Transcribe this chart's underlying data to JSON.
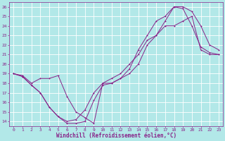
{
  "title": "",
  "xlabel": "Windchill (Refroidissement éolien,°C)",
  "ylabel": "",
  "bg_color": "#b2e8e8",
  "grid_color": "#ffffff",
  "line_color": "#882288",
  "xlim": [
    -0.5,
    23.5
  ],
  "ylim": [
    13.5,
    26.5
  ],
  "xticks": [
    0,
    1,
    2,
    3,
    4,
    5,
    6,
    7,
    8,
    9,
    10,
    11,
    12,
    13,
    14,
    15,
    16,
    17,
    18,
    19,
    20,
    21,
    22,
    23
  ],
  "yticks": [
    14,
    15,
    16,
    17,
    18,
    19,
    20,
    21,
    22,
    23,
    24,
    25,
    26
  ],
  "line1_x": [
    0,
    1,
    2,
    3,
    4,
    5,
    6,
    7,
    8,
    9,
    10,
    11,
    12,
    13,
    14,
    15,
    16,
    17,
    18,
    19,
    20,
    21,
    22,
    23
  ],
  "line1_y": [
    19,
    18.8,
    18.0,
    18.5,
    18.5,
    18.8,
    16.6,
    15.0,
    14.4,
    13.8,
    18.0,
    18.0,
    18.5,
    19.0,
    20.0,
    22.0,
    23.0,
    24.5,
    26.0,
    26.0,
    25.5,
    24.0,
    22.0,
    21.5
  ],
  "line2_x": [
    0,
    1,
    2,
    3,
    4,
    5,
    6,
    7,
    8,
    9,
    10,
    11,
    12,
    13,
    14,
    15,
    16,
    17,
    18,
    19,
    20,
    21,
    22,
    23
  ],
  "line2_y": [
    19,
    18.7,
    17.8,
    17.0,
    15.5,
    14.5,
    13.8,
    13.8,
    14.0,
    16.2,
    17.8,
    18.0,
    18.5,
    19.5,
    21.5,
    23.0,
    24.5,
    25.0,
    26.0,
    25.8,
    24.0,
    21.8,
    21.2,
    21.0
  ],
  "line3_x": [
    0,
    1,
    2,
    3,
    4,
    5,
    6,
    7,
    8,
    9,
    10,
    11,
    12,
    13,
    14,
    15,
    16,
    17,
    18,
    19,
    20,
    21,
    22,
    23
  ],
  "line3_y": [
    19,
    18.7,
    17.8,
    17.0,
    15.5,
    14.5,
    14.0,
    14.2,
    15.2,
    17.0,
    18.0,
    18.5,
    19.0,
    20.0,
    21.0,
    22.5,
    23.0,
    24.0,
    24.0,
    24.5,
    25.0,
    21.5,
    21.0,
    21.0
  ],
  "tick_fontsize": 4.5,
  "xlabel_fontsize": 5.5,
  "marker_size": 2.0,
  "line_width": 0.7
}
